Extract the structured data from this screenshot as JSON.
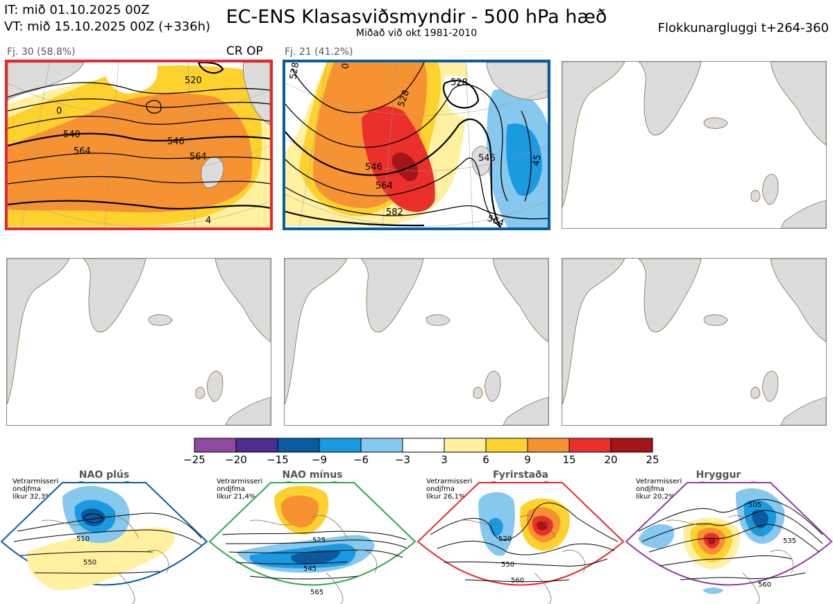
{
  "header": {
    "it_line": "IT: mið 01.10.2025 00Z",
    "vt_line": "VT: mið 15.10.2025 00Z  (+336h)",
    "title": "EC-ENS Klasasviðsmyndir - 500 hPa hæð",
    "subtitle": "Miðað við okt 1981-2010",
    "window": "Flokkunargluggi t+264-360"
  },
  "clusters": [
    {
      "label": "Fj. 30 (58.8%)",
      "flag": "CR OP",
      "border_color": "#e8262d",
      "contour_labels": [
        "520",
        "540",
        "546",
        "564",
        "564",
        "0",
        "4"
      ]
    },
    {
      "label": "Fj. 21 (41.2%)",
      "flag": "",
      "border_color": "#0a5aa0",
      "contour_labels": [
        "528",
        "528",
        "528",
        "546",
        "564",
        "582",
        "546",
        "564",
        "0",
        "45"
      ]
    }
  ],
  "colors": {
    "land": "#dcdcdc",
    "coast": "#8a6a40",
    "anomaly_bins": [
      "#8d4a9f",
      "#4d2d90",
      "#0a5aa0",
      "#1a9ae0",
      "#86c8ee",
      "#ffffff",
      "#fff1a0",
      "#fdd22f",
      "#f79233",
      "#eb2f2b",
      "#a51418"
    ]
  },
  "colorbar": {
    "ticks": [
      "−25",
      "−20",
      "−15",
      "−9",
      "−6",
      "−3",
      "3",
      "6",
      "9",
      "15",
      "20",
      "25"
    ]
  },
  "regimes": [
    {
      "name": "NAO plús",
      "info_line1": "Vetrarmisseri",
      "info_line2": "ondjfma",
      "info_line3": "líkur 32,3%",
      "color": "#0a5aa0",
      "labels": [
        "510",
        "550"
      ]
    },
    {
      "name": "NAO mínus",
      "info_line1": "Vetrarmisseri",
      "info_line2": "ondjfma",
      "info_line3": "líkur 21,4%",
      "color": "#2aa84a",
      "labels": [
        "525",
        "545",
        "565"
      ]
    },
    {
      "name": "Fyrirstaða",
      "info_line1": "Vetrarmisseri",
      "info_line2": "ondjfma",
      "info_line3": "líkur 26,1%",
      "color": "#e8262d",
      "labels": [
        "520",
        "550",
        "560"
      ]
    },
    {
      "name": "Hryggur",
      "info_line1": "Vetrarmisseri",
      "info_line2": "ondjfma",
      "info_line3": "líkur 20,2%",
      "color": "#8d3a9f",
      "labels": [
        "505",
        "535",
        "560"
      ]
    }
  ]
}
